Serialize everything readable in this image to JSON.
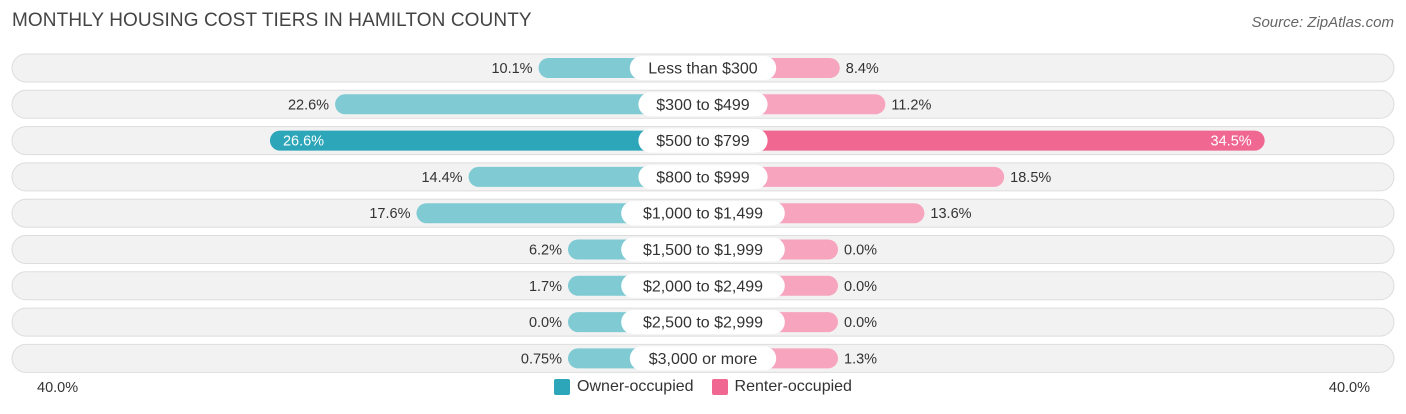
{
  "header": {
    "title": "MONTHLY HOUSING COST TIERS IN HAMILTON COUNTY",
    "source": "Source: ZipAtlas.com"
  },
  "colors": {
    "owner_strong": "#2ca6b8",
    "owner_light": "#7fcad3",
    "renter_strong": "#f06792",
    "renter_light": "#f7a5bf",
    "track": "#eeeeee",
    "track_border": "#dddddd"
  },
  "axis": {
    "left_label": "40.0%",
    "right_label": "40.0%"
  },
  "legend": {
    "owner": "Owner-occupied",
    "renter": "Renter-occupied"
  },
  "chart_data": {
    "type": "bar",
    "orientation": "horizontal-diverging",
    "title": "MONTHLY HOUSING COST TIERS IN HAMILTON COUNTY",
    "xlim": [
      -40,
      40
    ],
    "categories": [
      "Less than $300",
      "$300 to $499",
      "$500 to $799",
      "$800 to $999",
      "$1,000 to $1,499",
      "$1,500 to $1,999",
      "$2,000 to $2,499",
      "$2,500 to $2,999",
      "$3,000 or more"
    ],
    "series": [
      {
        "name": "Owner-occupied",
        "values": [
          10.1,
          22.6,
          26.6,
          14.4,
          17.6,
          6.2,
          1.7,
          0.0,
          0.75
        ],
        "labels": [
          "10.1%",
          "22.6%",
          "26.6%",
          "14.4%",
          "17.6%",
          "6.2%",
          "1.7%",
          "0.0%",
          "0.75%"
        ]
      },
      {
        "name": "Renter-occupied",
        "values": [
          8.4,
          11.2,
          34.5,
          18.5,
          13.6,
          0.0,
          0.0,
          0.0,
          1.3
        ],
        "labels": [
          "8.4%",
          "11.2%",
          "34.5%",
          "18.5%",
          "13.6%",
          "0.0%",
          "0.0%",
          "0.0%",
          "1.3%"
        ]
      }
    ],
    "highlight_index": 2,
    "legend_position": "bottom-center"
  }
}
